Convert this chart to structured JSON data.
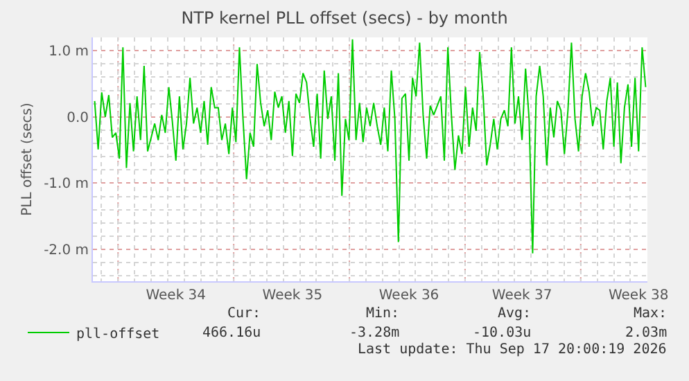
{
  "chart_data": {
    "type": "line",
    "title": "NTP kernel PLL offset (secs) - by month",
    "ylabel": "PLL offset (secs)",
    "categories": [
      null,
      null,
      null,
      null,
      null,
      null,
      null,
      null,
      null,
      null,
      null,
      null,
      null,
      null,
      null,
      null,
      null,
      null,
      null,
      null,
      null,
      null,
      null,
      "Week 34",
      null,
      null,
      null,
      null,
      null,
      null,
      null,
      null,
      null,
      null,
      null,
      null,
      null,
      null,
      null,
      null,
      null,
      null,
      null,
      null,
      null,
      null,
      null,
      null,
      null,
      null,
      null,
      null,
      null,
      null,
      null,
      null,
      "Week 35",
      null,
      null,
      null,
      null,
      null,
      null,
      null,
      null,
      null,
      null,
      null,
      null,
      null,
      null,
      null,
      null,
      null,
      null,
      null,
      null,
      null,
      null,
      null,
      null,
      null,
      null,
      null,
      null,
      null,
      null,
      null,
      null,
      "Week 36",
      null,
      null,
      null,
      null,
      null,
      null,
      null,
      null,
      null,
      null,
      null,
      null,
      null,
      null,
      null,
      null,
      null,
      null,
      null,
      null,
      null,
      null,
      null,
      null,
      null,
      null,
      null,
      null,
      null,
      null,
      null,
      "Week 37",
      null,
      null,
      null,
      null,
      null,
      null,
      null,
      null,
      null,
      null,
      null,
      null,
      null,
      null,
      null,
      null,
      null,
      null,
      null,
      null,
      null,
      null,
      null,
      null,
      null,
      null,
      null,
      null,
      null,
      null,
      null,
      null,
      "Week 38",
      null,
      null
    ],
    "ylim": [
      -2.48,
      1.2
    ],
    "yticks": [
      {
        "value": -2,
        "label": "-2.0 m"
      },
      {
        "value": -1,
        "label": "-1.0 m"
      },
      {
        "value": 0,
        "label": "0.0"
      },
      {
        "value": 1,
        "label": "1.0 m"
      }
    ],
    "grid": true,
    "legend": "bottom left",
    "marker": "none",
    "line_style": "solid",
    "series": [
      {
        "name": "pll-offset",
        "color": "#00cc00",
        "values": [
          0.24,
          -0.49,
          0.37,
          0.0,
          0.33,
          -0.31,
          -0.24,
          -0.63,
          1.05,
          -0.77,
          0.21,
          -0.52,
          0.31,
          -0.35,
          0.77,
          -0.52,
          -0.31,
          -0.1,
          -0.35,
          0.03,
          -0.24,
          0.45,
          -0.07,
          -0.66,
          0.31,
          -0.49,
          -0.1,
          0.59,
          -0.1,
          0.14,
          -0.24,
          0.24,
          -0.42,
          0.45,
          0.14,
          0.14,
          -0.35,
          -0.1,
          -0.56,
          0.14,
          -0.38,
          1.05,
          -0.03,
          -0.94,
          -0.24,
          -0.45,
          0.8,
          0.21,
          -0.14,
          0.1,
          -0.35,
          0.38,
          0.14,
          0.31,
          -0.24,
          0.24,
          -0.59,
          0.35,
          0.21,
          0.66,
          0.52,
          -0.03,
          -0.45,
          0.35,
          -0.63,
          0.7,
          -0.03,
          0.31,
          -0.66,
          0.66,
          -1.19,
          -0.03,
          -0.35,
          1.17,
          -0.35,
          0.21,
          -0.38,
          0.14,
          -0.14,
          0.21,
          -0.14,
          -0.42,
          0.14,
          -0.52,
          0.7,
          -0.03,
          -1.89,
          0.28,
          0.35,
          -0.66,
          0.59,
          0.31,
          1.12,
          0.03,
          -0.63,
          0.17,
          0.03,
          0.17,
          0.31,
          -0.66,
          1.05,
          0.03,
          -0.8,
          -0.28,
          -0.56,
          0.45,
          -0.45,
          0.14,
          -0.21,
          0.98,
          0.31,
          -0.73,
          -0.42,
          -0.03,
          -0.49,
          -0.03,
          0.1,
          -0.14,
          1.05,
          -0.1,
          0.31,
          -0.35,
          0.73,
          -0.03,
          -2.06,
          0.31,
          0.77,
          0.31,
          -0.73,
          0.14,
          -0.31,
          0.24,
          0.1,
          -0.56,
          0.1,
          1.12,
          -0.03,
          -0.52,
          0.31,
          0.66,
          0.38,
          -0.14,
          0.14,
          0.1,
          -0.49,
          0.24,
          0.59,
          -0.45,
          0.52,
          -0.7,
          0.14,
          0.49,
          -0.45,
          0.59,
          -0.52,
          1.05,
          0.45
        ]
      }
    ],
    "annotations": [
      "Cur:",
      "466.16u",
      "Min:",
      "-3.28m",
      "Avg:",
      "-10.03u",
      "Max:",
      "2.03m",
      "Last update: Thu Sep 17 20:00:19 2026"
    ]
  }
}
